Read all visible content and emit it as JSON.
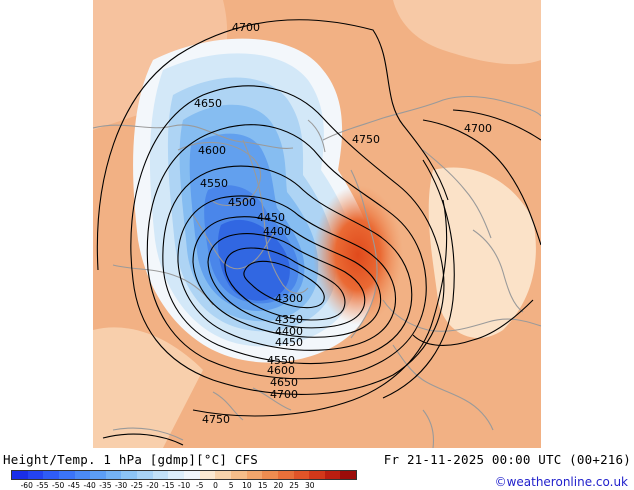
{
  "title": "Height/Temp. 1 hPa [gdmp][°C] CFS",
  "valid_time": "Fr 21-11-2025 00:00 UTC (00+216)",
  "credit": "©weatheronline.co.uk",
  "contour_labels": [
    "4700",
    "4650",
    "4600",
    "4550",
    "4500",
    "4450",
    "4400",
    "4300",
    "4350",
    "4400",
    "4450",
    "4550",
    "4600",
    "4650",
    "4700",
    "4750",
    "4700",
    "4750"
  ],
  "colorbar": {
    "ticks": [
      "-60",
      "-55",
      "-50",
      "-45",
      "-40",
      "-35",
      "-30",
      "-25",
      "-20",
      "-15",
      "-10",
      "-5",
      "0",
      "5",
      "10",
      "15",
      "20",
      "25",
      "30"
    ],
    "colors": [
      "#1a2ee8",
      "#2443f0",
      "#2f5cf6",
      "#3b74f8",
      "#4b8af7",
      "#5c9ef5",
      "#74b2f4",
      "#8cc4f5",
      "#a8d3f7",
      "#c2e1f8",
      "#dceefb",
      "#f0f6fb",
      "#fbe9d3",
      "#f8d3ac",
      "#f5bd8a",
      "#f2a56c",
      "#ee8c50",
      "#e8703a",
      "#e05428",
      "#d2381a",
      "#bb1e10",
      "#9c0c0a"
    ]
  },
  "colors": {
    "coast": "#9a9a9a",
    "contour": "#000000",
    "credit": "#2222cc"
  }
}
